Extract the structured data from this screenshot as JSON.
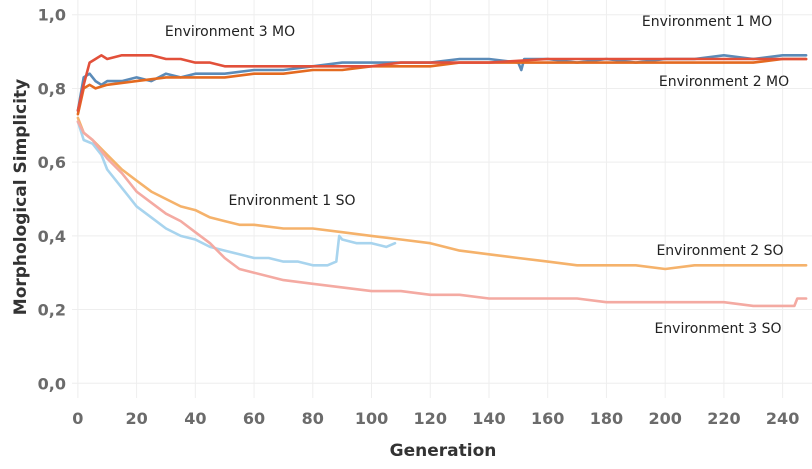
{
  "chart_data": {
    "type": "line",
    "title": "",
    "xlabel": "Generation",
    "ylabel": "Morphological Simplicity",
    "xlim": [
      -2,
      250
    ],
    "ylim": [
      -0.04,
      1.04
    ],
    "x_ticks": [
      0,
      20,
      40,
      60,
      80,
      100,
      120,
      140,
      160,
      180,
      200,
      220,
      240
    ],
    "y_ticks": [
      0.0,
      0.2,
      0.4,
      0.6,
      0.8,
      1.0
    ],
    "y_tick_labels": [
      "0,0",
      "0,2",
      "0,4",
      "0,6",
      "0,8",
      "1,0"
    ],
    "grid": true,
    "series": [
      {
        "name": "Environment 1 MO",
        "color": "#5b8bb8",
        "x": [
          0,
          2,
          4,
          6,
          8,
          10,
          15,
          20,
          25,
          30,
          35,
          40,
          50,
          60,
          70,
          80,
          90,
          100,
          110,
          120,
          130,
          140,
          150,
          151,
          152,
          160,
          170,
          180,
          190,
          200,
          210,
          220,
          230,
          240,
          248
        ],
        "y": [
          0.74,
          0.83,
          0.84,
          0.82,
          0.81,
          0.82,
          0.82,
          0.83,
          0.82,
          0.84,
          0.83,
          0.84,
          0.84,
          0.85,
          0.85,
          0.86,
          0.87,
          0.87,
          0.87,
          0.87,
          0.88,
          0.88,
          0.87,
          0.85,
          0.88,
          0.88,
          0.87,
          0.88,
          0.87,
          0.88,
          0.88,
          0.89,
          0.88,
          0.89,
          0.89
        ]
      },
      {
        "name": "Environment 2 MO",
        "color": "#e46a20",
        "x": [
          0,
          2,
          4,
          6,
          10,
          20,
          30,
          40,
          50,
          60,
          70,
          80,
          90,
          100,
          110,
          120,
          130,
          140,
          150,
          160,
          170,
          180,
          190,
          200,
          210,
          220,
          230,
          240,
          248
        ],
        "y": [
          0.73,
          0.8,
          0.81,
          0.8,
          0.81,
          0.82,
          0.83,
          0.83,
          0.83,
          0.84,
          0.84,
          0.85,
          0.85,
          0.86,
          0.86,
          0.86,
          0.87,
          0.87,
          0.87,
          0.87,
          0.87,
          0.87,
          0.87,
          0.87,
          0.87,
          0.87,
          0.87,
          0.88,
          0.88
        ]
      },
      {
        "name": "Environment 3 MO",
        "color": "#e2503a",
        "x": [
          0,
          2,
          4,
          6,
          8,
          10,
          15,
          20,
          25,
          30,
          35,
          40,
          45,
          50,
          60,
          70,
          80,
          90,
          100,
          110,
          120,
          140,
          160,
          180,
          200,
          220,
          240,
          248
        ],
        "y": [
          0.74,
          0.81,
          0.87,
          0.88,
          0.89,
          0.88,
          0.89,
          0.89,
          0.89,
          0.88,
          0.88,
          0.87,
          0.87,
          0.86,
          0.86,
          0.86,
          0.86,
          0.86,
          0.86,
          0.87,
          0.87,
          0.87,
          0.88,
          0.88,
          0.88,
          0.88,
          0.88,
          0.88
        ]
      },
      {
        "name": "Environment 1 SO",
        "color": "#a8d4ee",
        "x": [
          0,
          2,
          5,
          8,
          10,
          15,
          20,
          25,
          30,
          35,
          40,
          45,
          50,
          55,
          60,
          65,
          70,
          75,
          80,
          85,
          88,
          89,
          90,
          95,
          100,
          105,
          108
        ],
        "y": [
          0.71,
          0.66,
          0.65,
          0.62,
          0.58,
          0.53,
          0.48,
          0.45,
          0.42,
          0.4,
          0.39,
          0.37,
          0.36,
          0.35,
          0.34,
          0.34,
          0.33,
          0.33,
          0.32,
          0.32,
          0.33,
          0.4,
          0.39,
          0.38,
          0.38,
          0.37,
          0.38
        ]
      },
      {
        "name": "Environment 2 SO",
        "color": "#f5b26b",
        "x": [
          0,
          2,
          5,
          10,
          15,
          20,
          25,
          30,
          35,
          40,
          45,
          50,
          55,
          60,
          70,
          80,
          90,
          100,
          110,
          120,
          130,
          140,
          150,
          160,
          170,
          180,
          190,
          200,
          210,
          220,
          230,
          240,
          248
        ],
        "y": [
          0.72,
          0.68,
          0.66,
          0.62,
          0.58,
          0.55,
          0.52,
          0.5,
          0.48,
          0.47,
          0.45,
          0.44,
          0.43,
          0.43,
          0.42,
          0.42,
          0.41,
          0.4,
          0.39,
          0.38,
          0.36,
          0.35,
          0.34,
          0.33,
          0.32,
          0.32,
          0.32,
          0.31,
          0.32,
          0.32,
          0.32,
          0.32,
          0.32
        ]
      },
      {
        "name": "Environment 3 SO",
        "color": "#f4aaa2",
        "x": [
          0,
          2,
          5,
          10,
          15,
          20,
          25,
          30,
          35,
          40,
          45,
          50,
          55,
          60,
          70,
          80,
          90,
          100,
          110,
          120,
          130,
          140,
          150,
          160,
          170,
          180,
          190,
          200,
          210,
          220,
          230,
          240,
          244,
          245,
          248
        ],
        "y": [
          0.71,
          0.68,
          0.66,
          0.61,
          0.57,
          0.52,
          0.49,
          0.46,
          0.44,
          0.41,
          0.38,
          0.34,
          0.31,
          0.3,
          0.28,
          0.27,
          0.26,
          0.25,
          0.25,
          0.24,
          0.24,
          0.23,
          0.23,
          0.23,
          0.23,
          0.22,
          0.22,
          0.22,
          0.22,
          0.22,
          0.21,
          0.21,
          0.21,
          0.23,
          0.23
        ]
      }
    ],
    "annotations": [
      {
        "text": "Environment 3 MO",
        "series": "Environment 3 MO"
      },
      {
        "text": "Environment 1 MO",
        "series": "Environment 1 MO"
      },
      {
        "text": "Environment 2 MO",
        "series": "Environment 2 MO"
      },
      {
        "text": "Environment 1 SO",
        "series": "Environment 1 SO"
      },
      {
        "text": "Environment 2 SO",
        "series": "Environment 2 SO"
      },
      {
        "text": "Environment 3 SO",
        "series": "Environment 3 SO"
      }
    ]
  }
}
